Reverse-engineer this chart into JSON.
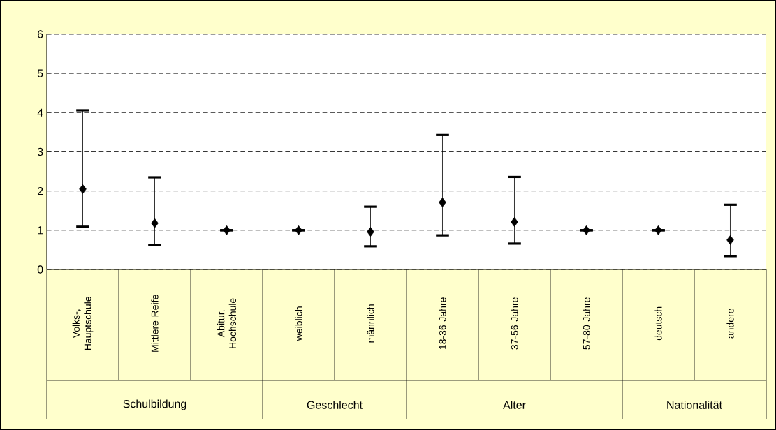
{
  "chart_data": {
    "type": "scatter",
    "categories": [
      "Volks-, Hauptschule",
      "Mittlere Reife",
      "Abitur, Hochschule",
      "weiblich",
      "männlich",
      "18-36 Jahre",
      "37-56 Jahre",
      "57-80 Jahre",
      "deutsch",
      "andere"
    ],
    "values": [
      2.05,
      1.18,
      1,
      1,
      0.96,
      1.71,
      1.21,
      1,
      1,
      0.75
    ],
    "errors": [
      [
        1.09,
        4.06
      ],
      [
        0.63,
        2.35
      ],
      null,
      null,
      [
        0.59,
        1.6
      ],
      [
        0.87,
        3.43
      ],
      [
        0.66,
        2.36
      ],
      null,
      null,
      [
        0.34,
        1.65
      ]
    ],
    "color": "#000000",
    "marker": "diamond",
    "ylim": [
      0,
      6
    ],
    "yticks": [
      0,
      1,
      2,
      3,
      4,
      5,
      6
    ],
    "grid": "y",
    "annotations": [
      "Schulbildung",
      "Geschlecht",
      "Alter",
      "Nationalität"
    ]
  }
}
